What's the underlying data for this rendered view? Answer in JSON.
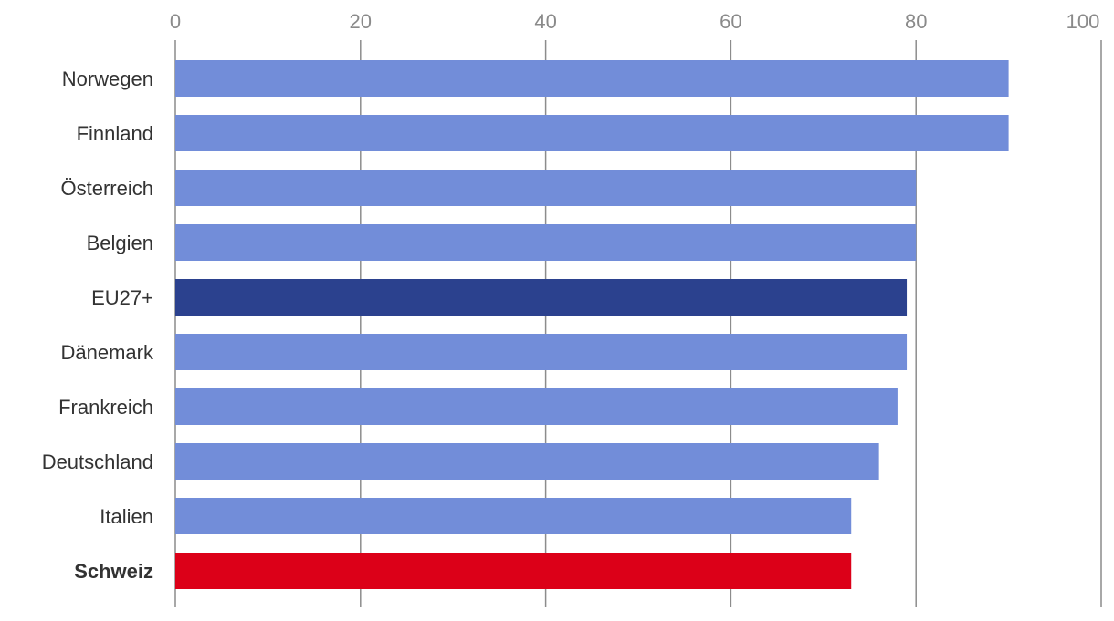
{
  "chart_data": {
    "type": "bar",
    "orientation": "horizontal",
    "categories": [
      "Norwegen",
      "Finnland",
      "Österreich",
      "Belgien",
      "EU27+",
      "Dänemark",
      "Frankreich",
      "Deutschland",
      "Italien",
      "Schweiz"
    ],
    "values": [
      90,
      90,
      80,
      80,
      79,
      79,
      78,
      76,
      73,
      73
    ],
    "bar_colors": [
      "#728dd9",
      "#728dd9",
      "#728dd9",
      "#728dd9",
      "#2b418e",
      "#728dd9",
      "#728dd9",
      "#728dd9",
      "#728dd9",
      "#dc0018"
    ],
    "bold_categories": [
      "Schweiz"
    ],
    "xlim": [
      0,
      100
    ],
    "xticks": [
      "0",
      "20",
      "40",
      "60",
      "80",
      "100"
    ],
    "x_axis_position": "top",
    "grid": true,
    "title": "",
    "xlabel": "",
    "ylabel": ""
  }
}
